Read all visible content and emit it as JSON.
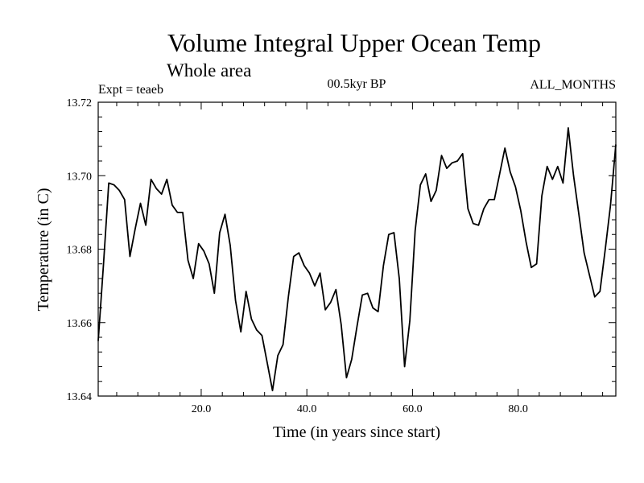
{
  "chart_data": {
    "type": "line",
    "title": "Volume Integral Upper Ocean Temp",
    "subtitle": "Whole area",
    "header_left": "Expt = teaeb",
    "header_center": "00.5kyr BP",
    "header_right": "ALL_MONTHS",
    "xlabel": "Time (in years since start)",
    "ylabel": "Temperature (in C)",
    "xlim": [
      0.5,
      98.5
    ],
    "ylim": [
      13.64,
      13.72
    ],
    "x_ticks": [
      {
        "value": 20,
        "label": "20.0"
      },
      {
        "value": 40,
        "label": "40.0"
      },
      {
        "value": 60,
        "label": "60.0"
      },
      {
        "value": 80,
        "label": "80.0"
      }
    ],
    "y_ticks": [
      {
        "value": 13.64,
        "label": "13.64"
      },
      {
        "value": 13.66,
        "label": "13.66"
      },
      {
        "value": 13.68,
        "label": "13.68"
      },
      {
        "value": 13.7,
        "label": "13.70"
      },
      {
        "value": 13.72,
        "label": "13.72"
      }
    ],
    "x_minor_step": 4,
    "y_minor_step": 0.004,
    "grid": false,
    "series": [
      {
        "name": "Temperature",
        "color": "#000000",
        "x": [
          0.5,
          1.5,
          2.5,
          3.5,
          4.5,
          5.5,
          6.5,
          7.5,
          8.5,
          9.5,
          10.5,
          11.5,
          12.5,
          13.5,
          14.5,
          15.5,
          16.5,
          17.5,
          18.5,
          19.5,
          20.5,
          21.5,
          22.5,
          23.5,
          24.5,
          25.5,
          26.5,
          27.5,
          28.5,
          29.5,
          30.5,
          31.5,
          32.5,
          33.5,
          34.5,
          35.5,
          36.5,
          37.5,
          38.5,
          39.5,
          40.5,
          41.5,
          42.5,
          43.5,
          44.5,
          45.5,
          46.5,
          47.5,
          48.5,
          49.5,
          50.5,
          51.5,
          52.5,
          53.5,
          54.5,
          55.5,
          56.5,
          57.5,
          58.5,
          59.5,
          60.5,
          61.5,
          62.5,
          63.5,
          64.5,
          65.5,
          66.5,
          67.5,
          68.5,
          69.5,
          70.5,
          71.5,
          72.5,
          73.5,
          74.5,
          75.5,
          76.5,
          77.5,
          78.5,
          79.5,
          80.5,
          81.5,
          82.5,
          83.5,
          84.5,
          85.5,
          86.5,
          87.5,
          88.5,
          89.5,
          90.5,
          91.5,
          92.5,
          93.5,
          94.5,
          95.5,
          96.5,
          97.5,
          98.5
        ],
        "values": [
          13.655,
          13.676,
          13.698,
          13.6975,
          13.696,
          13.6935,
          13.678,
          13.6855,
          13.6925,
          13.6865,
          13.699,
          13.6965,
          13.695,
          13.699,
          13.692,
          13.69,
          13.69,
          13.677,
          13.672,
          13.6815,
          13.6795,
          13.676,
          13.668,
          13.6845,
          13.6895,
          13.681,
          13.666,
          13.6575,
          13.6685,
          13.661,
          13.658,
          13.6565,
          13.649,
          13.6415,
          13.651,
          13.654,
          13.667,
          13.678,
          13.679,
          13.6755,
          13.6735,
          13.67,
          13.6735,
          13.6635,
          13.6655,
          13.669,
          13.6595,
          13.645,
          13.65,
          13.659,
          13.6675,
          13.668,
          13.664,
          13.663,
          13.6755,
          13.684,
          13.6845,
          13.672,
          13.648,
          13.6605,
          13.685,
          13.6975,
          13.7005,
          13.693,
          13.696,
          13.7055,
          13.702,
          13.7035,
          13.704,
          13.706,
          13.691,
          13.687,
          13.6865,
          13.691,
          13.6935,
          13.6935,
          13.7005,
          13.7075,
          13.701,
          13.697,
          13.6905,
          13.682,
          13.675,
          13.676,
          13.6945,
          13.7025,
          13.699,
          13.7025,
          13.698,
          13.713,
          13.7,
          13.6895,
          13.679,
          13.673,
          13.667,
          13.6685,
          13.68,
          13.692,
          13.7085
        ]
      }
    ]
  }
}
